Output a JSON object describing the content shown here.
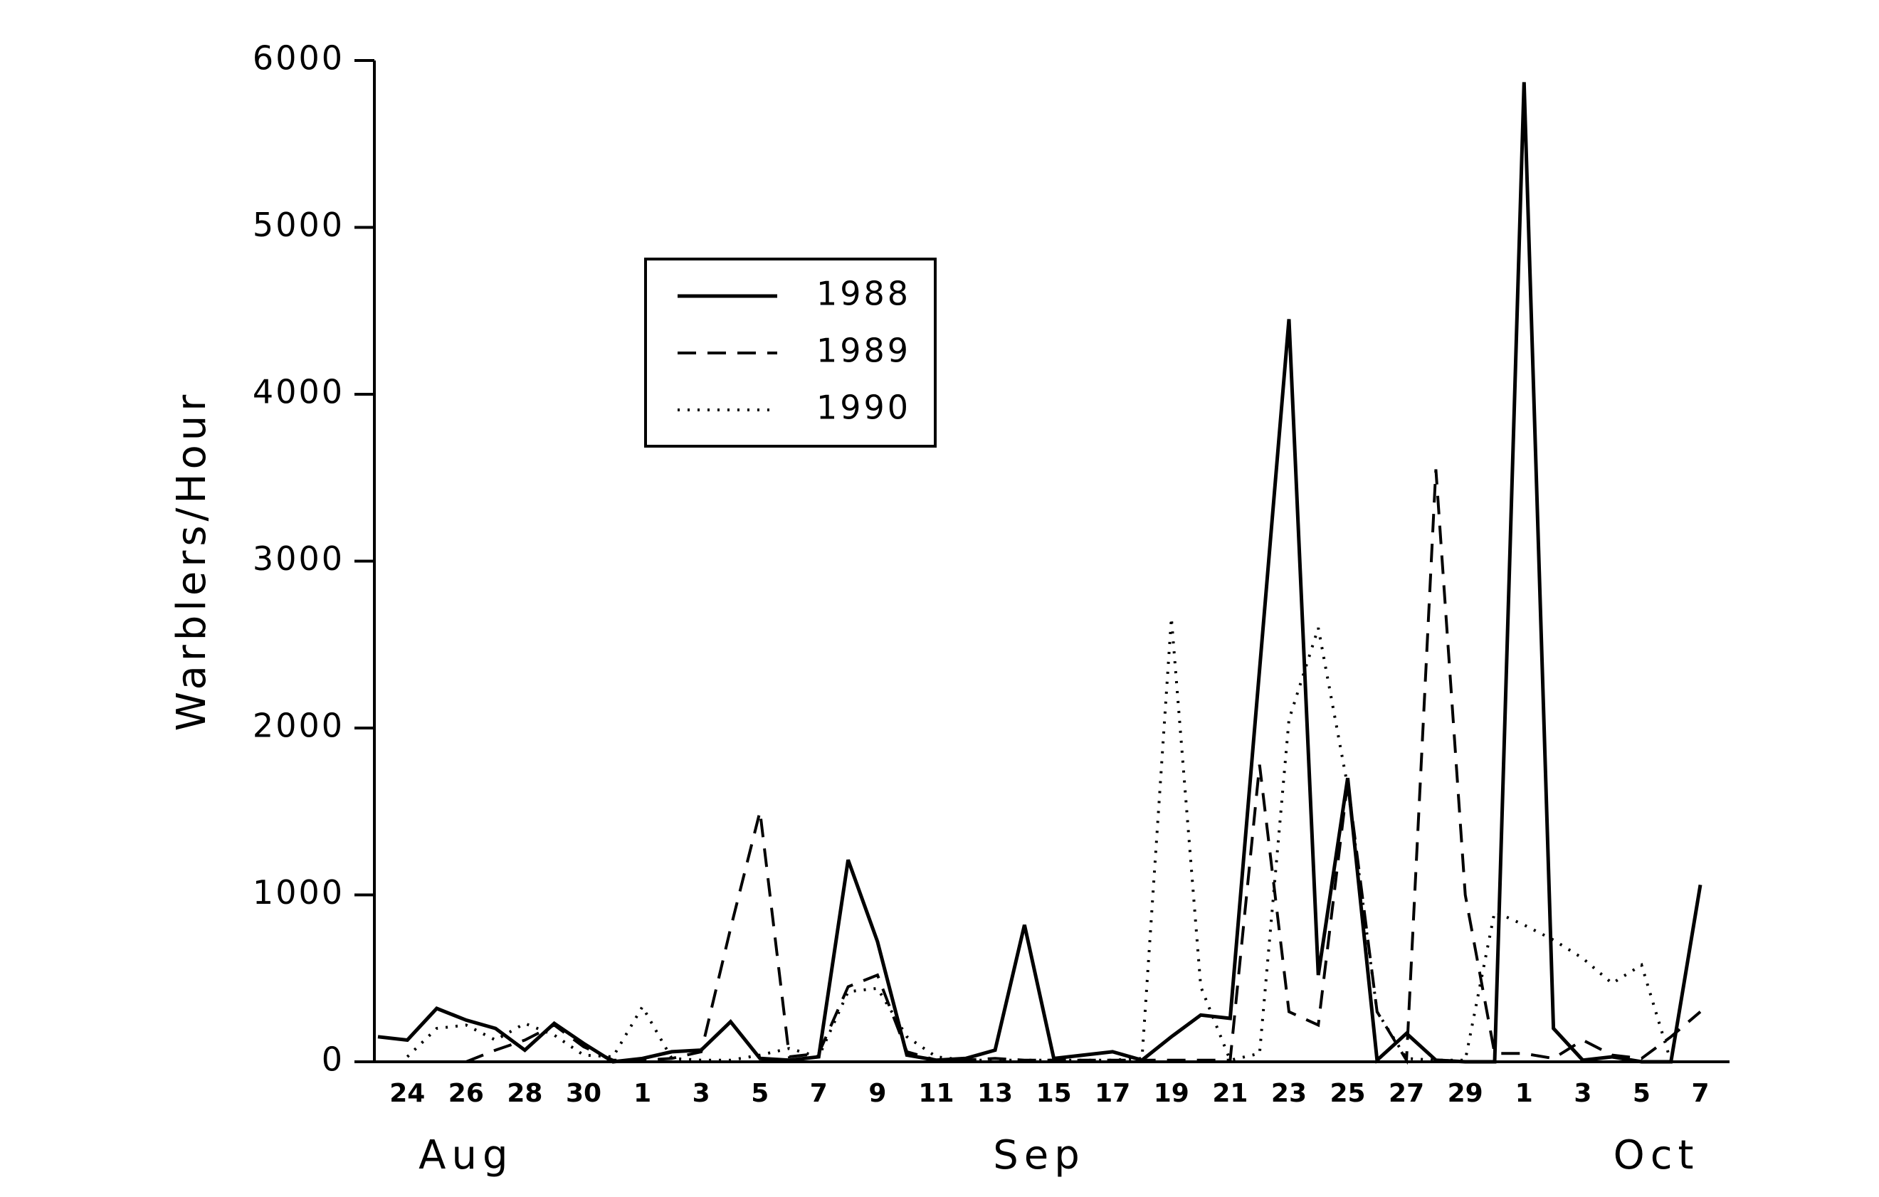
{
  "chart_data": {
    "type": "line",
    "y_label": "Warblers/Hour",
    "categories": [
      null,
      "24",
      null,
      "26",
      null,
      "28",
      null,
      "30",
      null,
      "1",
      null,
      "3",
      null,
      "5",
      null,
      "7",
      null,
      "9",
      null,
      "11",
      null,
      "13",
      null,
      "15",
      null,
      "17",
      null,
      "19",
      null,
      "21",
      null,
      "23",
      null,
      "25",
      null,
      "27",
      null,
      "29",
      null,
      "1",
      null,
      "3",
      null,
      "5",
      null,
      "7"
    ],
    "month_labels": [
      "Aug",
      "Sep",
      "Oct"
    ],
    "ylim": [
      0,
      6000
    ],
    "yticks": [
      0,
      1000,
      2000,
      3000,
      4000,
      5000,
      6000
    ],
    "legend": "upper-left",
    "series": [
      {
        "name": "1988",
        "color": "#000000",
        "style": "solid",
        "values": [
          150,
          130,
          320,
          250,
          200,
          70,
          230,
          110,
          0,
          20,
          60,
          70,
          240,
          20,
          10,
          30,
          1210,
          720,
          40,
          10,
          20,
          70,
          820,
          20,
          40,
          60,
          10,
          150,
          280,
          260,
          2350,
          4450,
          520,
          1700,
          10,
          170,
          10,
          0,
          0,
          5870,
          200,
          10,
          30,
          0,
          0,
          1060
        ]
      },
      {
        "name": "1989",
        "color": "#000000",
        "style": "dashed",
        "values": [
          null,
          null,
          null,
          0,
          70,
          130,
          220,
          90,
          10,
          10,
          20,
          60,
          800,
          1500,
          30,
          50,
          450,
          520,
          60,
          10,
          10,
          20,
          10,
          10,
          10,
          10,
          10,
          10,
          10,
          10,
          1780,
          300,
          220,
          1680,
          300,
          10,
          3550,
          1000,
          50,
          50,
          20,
          130,
          40,
          20,
          150,
          300
        ]
      },
      {
        "name": "1990",
        "color": "#000000",
        "style": "dotted",
        "values": [
          null,
          30,
          200,
          220,
          130,
          230,
          160,
          40,
          30,
          330,
          20,
          10,
          10,
          40,
          80,
          30,
          420,
          440,
          150,
          30,
          10,
          10,
          10,
          10,
          10,
          10,
          20,
          2660,
          450,
          10,
          50,
          2050,
          2600,
          1650,
          300,
          20,
          10,
          10,
          900,
          820,
          730,
          620,
          470,
          580,
          0,
          null
        ]
      }
    ]
  }
}
